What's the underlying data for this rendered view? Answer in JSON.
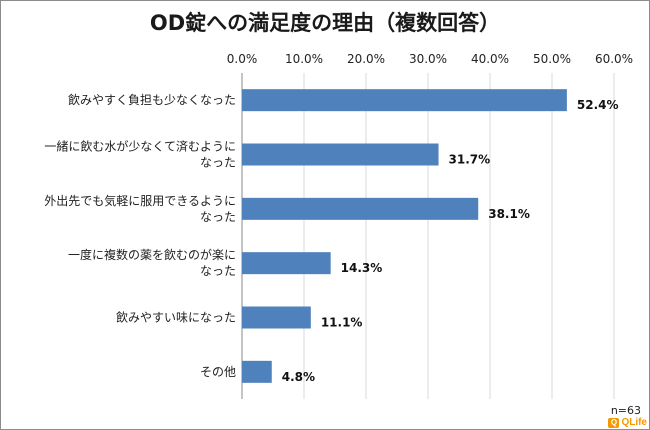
{
  "chart_data": {
    "type": "bar",
    "orientation": "horizontal",
    "title": "OD錠への満足度の理由（複数回答）",
    "categories": [
      [
        "飲みやすく負担も少なくなった"
      ],
      [
        "一緒に飲む水が少なくて済むように",
        "なった"
      ],
      [
        "外出先でも気軽に服用できるように",
        "なった"
      ],
      [
        "一度に複数の薬を飲むのが楽に",
        "なった"
      ],
      [
        "飲みやすい味になった"
      ],
      [
        "その他"
      ]
    ],
    "values": [
      52.4,
      31.7,
      38.1,
      14.3,
      11.1,
      4.8
    ],
    "value_labels": [
      "52.4%",
      "31.7%",
      "38.1%",
      "14.3%",
      "11.1%",
      "4.8%"
    ],
    "xlim": [
      0,
      60
    ],
    "x_ticks": [
      "0.0%",
      "10.0%",
      "20.0%",
      "30.0%",
      "40.0%",
      "50.0%",
      "60.0%"
    ],
    "grid": true,
    "axis_position": "top",
    "bar_color": "#4f81bd",
    "grid_color": "#d9d9d9"
  },
  "footer": {
    "sample_size": "n=63",
    "logo_text": "QLife"
  }
}
